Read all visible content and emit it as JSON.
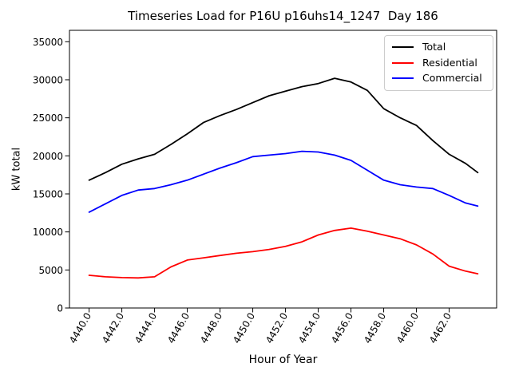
{
  "chart_data": {
    "type": "line",
    "title": "Timeseries Load for P16U p16uhs14_1247  Day 186",
    "xlabel": "Hour of Year",
    "ylabel": "kW total",
    "grid": false,
    "legend_position": "upper right",
    "xlim": [
      4438.8,
      4464.9
    ],
    "ylim": [
      0,
      36500
    ],
    "xtick_labels": [
      "4440.0",
      "4442.0",
      "4444.0",
      "4446.0",
      "4448.0",
      "4450.0",
      "4452.0",
      "4454.0",
      "4456.0",
      "4458.0",
      "4460.0",
      "4462.0"
    ],
    "ytick_labels": [
      "0",
      "5000",
      "10000",
      "15000",
      "20000",
      "25000",
      "30000",
      "35000"
    ],
    "x": [
      4440,
      4441,
      4442,
      4443,
      4444,
      4445,
      4446,
      4447,
      4448,
      4449,
      4450,
      4451,
      4452,
      4453,
      4454,
      4455,
      4456,
      4457,
      4458,
      4459,
      4460,
      4461,
      4462,
      4463,
      4463.75
    ],
    "series": [
      {
        "name": "Total",
        "color": "#000000",
        "values": [
          16800,
          17800,
          18900,
          19600,
          20200,
          21500,
          22900,
          24400,
          25300,
          26100,
          27000,
          27900,
          28500,
          29100,
          29500,
          30200,
          29700,
          28600,
          26200,
          25000,
          24000,
          22000,
          20200,
          19000,
          17800
        ]
      },
      {
        "name": "Residential",
        "color": "#ff0000",
        "values": [
          4300,
          4100,
          4000,
          3950,
          4100,
          5400,
          6300,
          6600,
          6900,
          7200,
          7400,
          7700,
          8100,
          8700,
          9600,
          10200,
          10500,
          10100,
          9600,
          9100,
          8300,
          7100,
          5500,
          4850,
          4500
        ]
      },
      {
        "name": "Commercial",
        "color": "#0000ff",
        "values": [
          12600,
          13700,
          14800,
          15500,
          15700,
          16200,
          16800,
          17600,
          18400,
          19100,
          19900,
          20100,
          20300,
          20600,
          20500,
          20100,
          19400,
          18100,
          16800,
          16200,
          15900,
          15700,
          14800,
          13800,
          13400
        ]
      }
    ]
  }
}
